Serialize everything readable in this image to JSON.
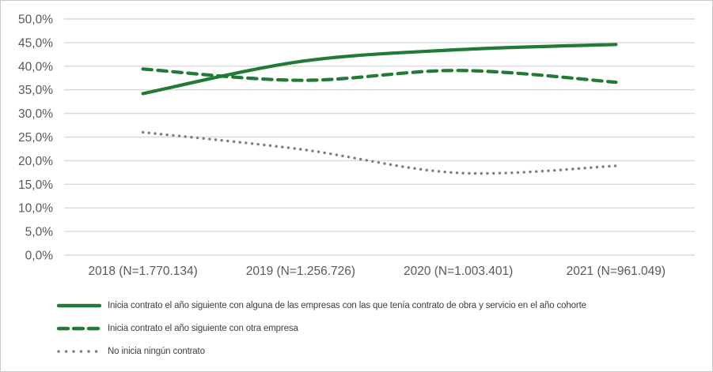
{
  "chart_data": {
    "type": "line",
    "title": "",
    "xlabel": "",
    "ylabel": "",
    "categories": [
      "2018 (N=1.770.134)",
      "2019 (N=1.256.726)",
      "2020 (N=1.003.401)",
      "2021 (N=961.049)"
    ],
    "series": [
      {
        "name": "Inicia contrato el año siguiente con alguna de las empresas con las que tenía contrato de obra y servicio en el año cohorte",
        "style": "solid",
        "color": "#217B36",
        "values": [
          34.2,
          41.0,
          43.5,
          44.6
        ]
      },
      {
        "name": "Inicia contrato el año siguiente con otra empresa",
        "style": "dashed",
        "color": "#217B36",
        "values": [
          39.4,
          37.0,
          39.1,
          36.6
        ]
      },
      {
        "name": "No inicia ningún contrato",
        "style": "dotted",
        "color": "#7F7F7F",
        "values": [
          26.0,
          22.4,
          17.4,
          18.9
        ]
      }
    ],
    "ylim": [
      0,
      50
    ],
    "ytick_step": 5,
    "ytick_labels": [
      "0,0%",
      "5,0%",
      "10,0%",
      "15,0%",
      "20,0%",
      "25,0%",
      "30,0%",
      "35,0%",
      "40,0%",
      "45,0%",
      "50,0%"
    ],
    "grid": true,
    "smooth_lines": true,
    "legend_position": "bottom-left"
  },
  "colors": {
    "background": "#FFFFFF",
    "frame_border": "#C9C9C9",
    "gridline": "#D9D9D9",
    "axis_text": "#595959",
    "legend_text": "#404040"
  }
}
